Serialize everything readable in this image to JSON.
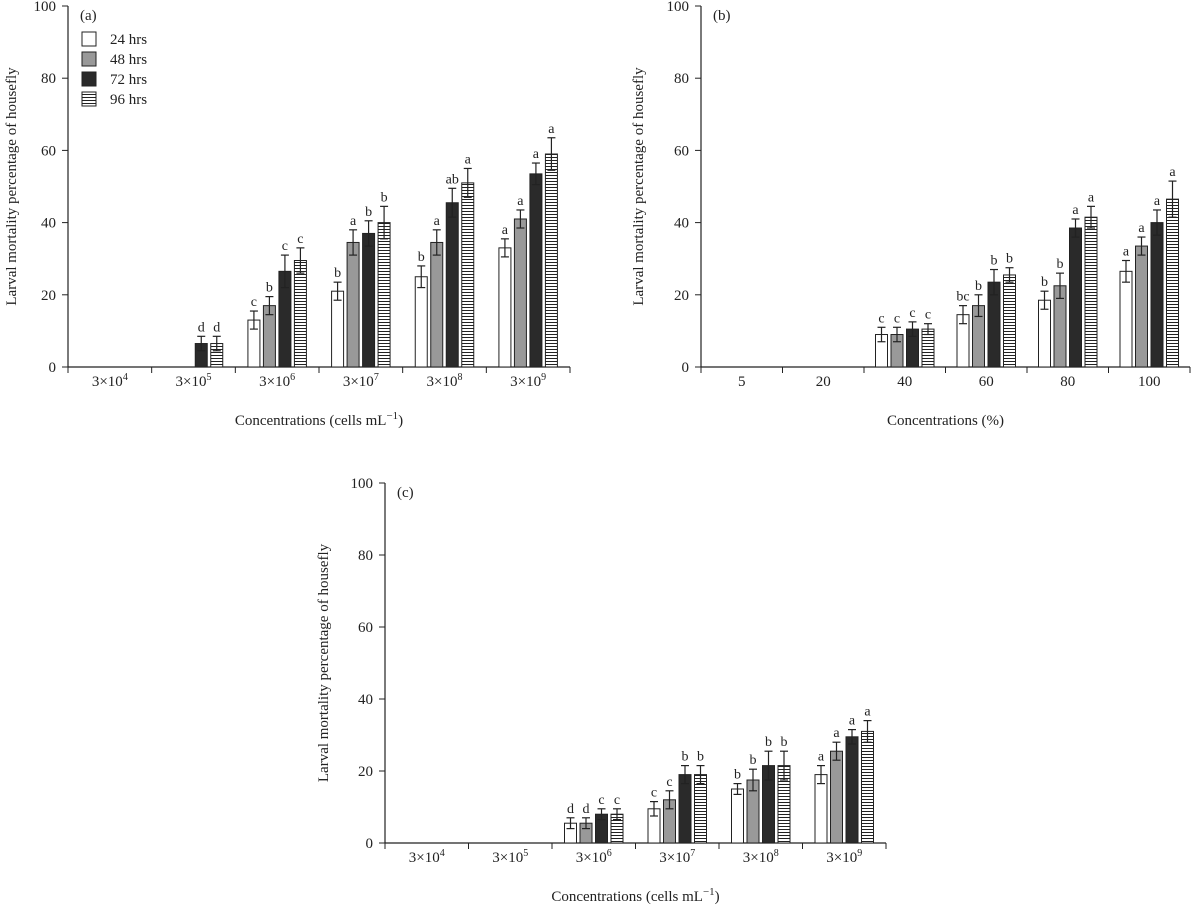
{
  "legend": [
    {
      "label": "24 hrs",
      "fill": "#ffffff",
      "pattern": "none"
    },
    {
      "label": "48 hrs",
      "fill": "#999999",
      "pattern": "none"
    },
    {
      "label": "72 hrs",
      "fill": "#2a2a2a",
      "pattern": "none"
    },
    {
      "label": "96 hrs",
      "fill": "#ffffff",
      "pattern": "horizontal-lines"
    }
  ],
  "colors": {
    "axis": "#222222",
    "bar_stroke": "#222222",
    "text": "#222222"
  },
  "chart_data": [
    {
      "type": "bar",
      "panel_label": "(a)",
      "ylabel": "Larval mortality percentage of housefly",
      "xlabel": "Concentrations (cells mL",
      "xlabel_superscript": "−1",
      "xlabel_suffix": ")",
      "ylim": [
        0,
        100
      ],
      "yticks": [
        0,
        20,
        40,
        60,
        80,
        100
      ],
      "legend_placement": "top-left",
      "categories": [
        {
          "base": "3×10",
          "exp": "4"
        },
        {
          "base": "3×10",
          "exp": "5"
        },
        {
          "base": "3×10",
          "exp": "6"
        },
        {
          "base": "3×10",
          "exp": "7"
        },
        {
          "base": "3×10",
          "exp": "8"
        },
        {
          "base": "3×10",
          "exp": "9"
        }
      ],
      "series": [
        {
          "name": "24 hrs",
          "values": [
            null,
            null,
            13,
            21,
            25,
            33
          ],
          "errors": [
            null,
            null,
            2.5,
            2.5,
            3,
            2.5
          ],
          "labels": [
            null,
            null,
            "c",
            "b",
            "b",
            "a"
          ]
        },
        {
          "name": "48 hrs",
          "values": [
            null,
            null,
            17,
            34.5,
            34.5,
            41
          ],
          "errors": [
            null,
            null,
            2.5,
            3.5,
            3.5,
            2.5
          ],
          "labels": [
            null,
            null,
            "b",
            "a",
            "a",
            "a"
          ]
        },
        {
          "name": "72 hrs",
          "values": [
            null,
            6.5,
            26.5,
            37,
            45.5,
            53.5
          ],
          "errors": [
            null,
            2,
            4.5,
            3.5,
            4,
            3
          ],
          "labels": [
            null,
            "d",
            "c",
            "b",
            "ab",
            "a"
          ]
        },
        {
          "name": "96 hrs",
          "values": [
            null,
            6.5,
            29.5,
            40,
            51,
            59
          ],
          "errors": [
            null,
            2,
            3.5,
            4.5,
            4,
            4.5
          ],
          "labels": [
            null,
            "d",
            "c",
            "b",
            "a",
            "a"
          ]
        }
      ]
    },
    {
      "type": "bar",
      "panel_label": "(b)",
      "ylabel": "Larval mortality percentage of housefly",
      "xlabel": "Concentrations (%)",
      "xlabel_superscript": "",
      "xlabel_suffix": "",
      "ylim": [
        0,
        100
      ],
      "yticks": [
        0,
        20,
        40,
        60,
        80,
        100
      ],
      "categories": [
        {
          "base": "5",
          "exp": ""
        },
        {
          "base": "20",
          "exp": ""
        },
        {
          "base": "40",
          "exp": ""
        },
        {
          "base": "60",
          "exp": ""
        },
        {
          "base": "80",
          "exp": ""
        },
        {
          "base": "100",
          "exp": ""
        }
      ],
      "series": [
        {
          "name": "24 hrs",
          "values": [
            null,
            null,
            9,
            14.5,
            18.5,
            26.5
          ],
          "errors": [
            null,
            null,
            2,
            2.5,
            2.5,
            3
          ],
          "labels": [
            null,
            null,
            "c",
            "bc",
            "b",
            "a"
          ]
        },
        {
          "name": "48 hrs",
          "values": [
            null,
            null,
            9,
            17,
            22.5,
            33.5
          ],
          "errors": [
            null,
            null,
            2,
            3,
            3.5,
            2.5
          ],
          "labels": [
            null,
            null,
            "c",
            "b",
            "b",
            "a"
          ]
        },
        {
          "name": "72 hrs",
          "values": [
            null,
            null,
            10.5,
            23.5,
            38.5,
            40
          ],
          "errors": [
            null,
            null,
            2,
            3.5,
            2.5,
            3.5
          ],
          "labels": [
            null,
            null,
            "c",
            "b",
            "a",
            "a"
          ]
        },
        {
          "name": "96 hrs",
          "values": [
            null,
            null,
            10.5,
            25.5,
            41.5,
            46.5
          ],
          "errors": [
            null,
            null,
            1.5,
            2,
            3,
            5
          ],
          "labels": [
            null,
            null,
            "c",
            "b",
            "a",
            "a"
          ]
        }
      ]
    },
    {
      "type": "bar",
      "panel_label": "(c)",
      "ylabel": "Larval mortality percentage of housefly",
      "xlabel": "Concentrations (cells mL",
      "xlabel_superscript": "−1",
      "xlabel_suffix": ")",
      "ylim": [
        0,
        100
      ],
      "yticks": [
        0,
        20,
        40,
        60,
        80,
        100
      ],
      "categories": [
        {
          "base": "3×10",
          "exp": "4"
        },
        {
          "base": "3×10",
          "exp": "5"
        },
        {
          "base": "3×10",
          "exp": "6"
        },
        {
          "base": "3×10",
          "exp": "7"
        },
        {
          "base": "3×10",
          "exp": "8"
        },
        {
          "base": "3×10",
          "exp": "9"
        }
      ],
      "series": [
        {
          "name": "24 hrs",
          "values": [
            null,
            null,
            5.5,
            9.5,
            15,
            19
          ],
          "errors": [
            null,
            null,
            1.5,
            2,
            1.5,
            2.5
          ],
          "labels": [
            null,
            null,
            "d",
            "c",
            "b",
            "a"
          ]
        },
        {
          "name": "48 hrs",
          "values": [
            null,
            null,
            5.5,
            12,
            17.5,
            25.5
          ],
          "errors": [
            null,
            null,
            1.5,
            2.5,
            3,
            2.5
          ],
          "labels": [
            null,
            null,
            "d",
            "c",
            "b",
            "a"
          ]
        },
        {
          "name": "72 hrs",
          "values": [
            null,
            null,
            8,
            19,
            21.5,
            29.5
          ],
          "errors": [
            null,
            null,
            1.5,
            2.5,
            4,
            2
          ],
          "labels": [
            null,
            null,
            "c",
            "b",
            "b",
            "a"
          ]
        },
        {
          "name": "96 hrs",
          "values": [
            null,
            null,
            8,
            19,
            21.5,
            31
          ],
          "errors": [
            null,
            null,
            1.5,
            2.5,
            4,
            3
          ],
          "labels": [
            null,
            null,
            "c",
            "b",
            "b",
            "a"
          ]
        }
      ]
    }
  ]
}
